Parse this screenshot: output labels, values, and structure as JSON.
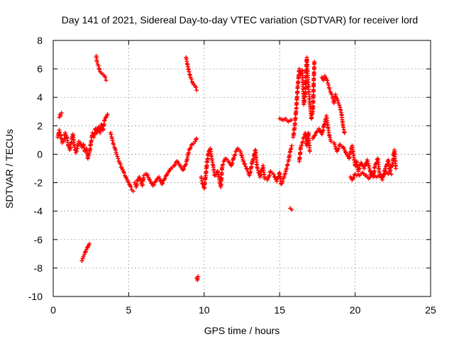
{
  "chart_data": {
    "type": "scatter",
    "title": "Day 141 of 2021, Sidereal Day-to-day VTEC variation (SDTVAR) for receiver lord",
    "xlabel": "GPS time / hours",
    "ylabel": "SDTVAR / TECUs",
    "xlim": [
      0,
      25
    ],
    "ylim": [
      -10,
      8
    ],
    "xticks": [
      0,
      5,
      10,
      15,
      20,
      25
    ],
    "yticks": [
      -10,
      -8,
      -6,
      -4,
      -2,
      0,
      2,
      4,
      6,
      8
    ],
    "grid": true,
    "marker": "+",
    "color": "#ff0000",
    "series": [
      {
        "name": "SDTVAR",
        "segments": [
          [
            [
              0.4,
              2.6
            ],
            [
              0.45,
              2.8
            ],
            [
              0.5,
              2.7
            ],
            [
              0.55,
              2.9
            ]
          ],
          [
            [
              0.3,
              1.2
            ],
            [
              0.4,
              1.7
            ],
            [
              0.5,
              1.3
            ],
            [
              0.6,
              0.8
            ],
            [
              0.7,
              0.9
            ],
            [
              0.8,
              1.5
            ],
            [
              0.9,
              1.2
            ],
            [
              1.0,
              0.6
            ],
            [
              1.1,
              0.3
            ],
            [
              1.2,
              0.8
            ],
            [
              1.3,
              1.4
            ],
            [
              1.4,
              0.6
            ],
            [
              1.5,
              0.1
            ],
            [
              1.6,
              0.4
            ],
            [
              1.7,
              0.9
            ],
            [
              1.8,
              0.8
            ],
            [
              1.9,
              0.5
            ],
            [
              2.0,
              0.7
            ],
            [
              2.1,
              0.2
            ],
            [
              2.2,
              0.4
            ],
            [
              2.3,
              -0.3
            ],
            [
              2.4,
              0.1
            ],
            [
              2.5,
              0.8
            ],
            [
              2.6,
              1.5
            ],
            [
              2.7,
              1.2
            ],
            [
              2.8,
              1.8
            ],
            [
              2.9,
              1.5
            ],
            [
              3.0,
              1.9
            ],
            [
              3.1,
              1.5
            ],
            [
              3.2,
              2.1
            ],
            [
              3.3,
              1.7
            ],
            [
              3.4,
              2.4
            ],
            [
              3.5,
              2.6
            ],
            [
              3.6,
              2.8
            ]
          ],
          [
            [
              1.9,
              -7.5
            ],
            [
              2.0,
              -7.2
            ],
            [
              2.1,
              -6.9
            ],
            [
              2.2,
              -6.7
            ],
            [
              2.3,
              -6.5
            ],
            [
              2.4,
              -6.3
            ]
          ],
          [
            [
              2.85,
              6.9
            ],
            [
              2.9,
              6.5
            ],
            [
              3.0,
              6.2
            ],
            [
              3.1,
              5.8
            ],
            [
              3.2,
              5.7
            ],
            [
              3.3,
              5.6
            ],
            [
              3.4,
              5.5
            ],
            [
              3.5,
              5.2
            ]
          ],
          [
            [
              3.8,
              1.5
            ],
            [
              3.9,
              1.1
            ],
            [
              4.0,
              0.7
            ],
            [
              4.1,
              0.4
            ],
            [
              4.2,
              0.0
            ],
            [
              4.3,
              -0.3
            ],
            [
              4.4,
              -0.6
            ],
            [
              4.5,
              -0.9
            ],
            [
              4.6,
              -1.1
            ],
            [
              4.7,
              -1.3
            ],
            [
              4.8,
              -1.6
            ],
            [
              4.9,
              -1.8
            ],
            [
              5.0,
              -2.0
            ],
            [
              5.1,
              -2.2
            ],
            [
              5.2,
              -2.5
            ],
            [
              5.3,
              -2.6
            ]
          ],
          [
            [
              5.4,
              -2.0
            ],
            [
              5.5,
              -2.3
            ],
            [
              5.6,
              -1.8
            ],
            [
              5.7,
              -1.6
            ],
            [
              5.8,
              -1.9
            ],
            [
              5.9,
              -2.2
            ],
            [
              6.0,
              -1.5
            ],
            [
              6.2,
              -1.4
            ],
            [
              6.4,
              -1.8
            ],
            [
              6.6,
              -2.2
            ],
            [
              6.8,
              -1.9
            ],
            [
              7.0,
              -1.6
            ],
            [
              7.2,
              -2.1
            ],
            [
              7.4,
              -1.7
            ],
            [
              7.6,
              -1.3
            ],
            [
              7.8,
              -1.0
            ],
            [
              8.0,
              -0.8
            ],
            [
              8.2,
              -0.5
            ],
            [
              8.4,
              -0.8
            ],
            [
              8.6,
              -1.1
            ],
            [
              8.8,
              -0.7
            ],
            [
              8.9,
              -0.2
            ],
            [
              9.0,
              0.3
            ],
            [
              9.2,
              0.7
            ],
            [
              9.4,
              0.9
            ],
            [
              9.5,
              1.1
            ]
          ],
          [
            [
              8.8,
              6.8
            ],
            [
              8.9,
              6.3
            ],
            [
              9.0,
              5.8
            ],
            [
              9.1,
              5.4
            ],
            [
              9.2,
              5.1
            ],
            [
              9.3,
              4.9
            ],
            [
              9.4,
              4.8
            ],
            [
              9.5,
              4.5
            ]
          ],
          [
            [
              9.5,
              -8.7
            ],
            [
              9.55,
              -8.85
            ],
            [
              9.6,
              -8.6
            ]
          ],
          [
            [
              9.8,
              -1.6
            ],
            [
              9.9,
              -2.1
            ],
            [
              10.0,
              -2.4
            ],
            [
              10.1,
              -1.5
            ],
            [
              10.2,
              -0.5
            ],
            [
              10.3,
              0.2
            ],
            [
              10.4,
              0.4
            ],
            [
              10.5,
              -0.3
            ],
            [
              10.6,
              -0.8
            ],
            [
              10.7,
              -1.5
            ],
            [
              10.9,
              -1.2
            ],
            [
              11.1,
              -2.3
            ],
            [
              11.2,
              -0.8
            ],
            [
              11.4,
              -0.3
            ],
            [
              11.6,
              -0.5
            ],
            [
              11.8,
              -0.8
            ],
            [
              12.0,
              -0.1
            ],
            [
              12.2,
              0.4
            ],
            [
              12.4,
              0.2
            ],
            [
              12.6,
              -0.5
            ],
            [
              12.8,
              -1.0
            ],
            [
              13.0,
              -1.5
            ],
            [
              13.2,
              -0.5
            ],
            [
              13.4,
              0.3
            ],
            [
              13.5,
              -0.9
            ],
            [
              13.7,
              -1.6
            ],
            [
              13.9,
              -0.8
            ],
            [
              14.0,
              -1.7
            ],
            [
              14.2,
              -1.8
            ],
            [
              14.4,
              -1.2
            ],
            [
              14.6,
              -1.4
            ],
            [
              14.8,
              -1.9
            ],
            [
              15.0,
              -1.3
            ],
            [
              15.1,
              -2.1
            ],
            [
              15.2,
              -1.9
            ],
            [
              15.3,
              -1.6
            ],
            [
              15.4,
              -1.2
            ],
            [
              15.5,
              -0.8
            ],
            [
              15.6,
              -0.4
            ],
            [
              15.7,
              0.2
            ],
            [
              15.8,
              0.6
            ]
          ],
          [
            [
              15.0,
              2.5
            ],
            [
              15.2,
              2.4
            ],
            [
              15.4,
              2.5
            ],
            [
              15.6,
              2.3
            ],
            [
              15.8,
              2.4
            ]
          ],
          [
            [
              15.7,
              -3.8
            ],
            [
              15.8,
              -3.9
            ]
          ],
          [
            [
              15.9,
              1.2
            ],
            [
              16.0,
              2.0
            ],
            [
              16.1,
              3.2
            ],
            [
              16.2,
              4.8
            ],
            [
              16.3,
              6.0
            ],
            [
              16.4,
              5.6
            ],
            [
              16.5,
              5.9
            ],
            [
              16.6,
              3.5
            ],
            [
              16.7,
              4.2
            ],
            [
              16.8,
              6.8
            ],
            [
              16.9,
              4.8
            ],
            [
              17.0,
              3.6
            ],
            [
              17.1,
              2.5
            ],
            [
              17.2,
              3.0
            ],
            [
              17.3,
              6.5
            ]
          ],
          [
            [
              16.3,
              -0.5
            ],
            [
              16.4,
              0.5
            ],
            [
              16.5,
              0.8
            ],
            [
              16.6,
              1.2
            ],
            [
              16.7,
              1.5
            ],
            [
              16.8,
              0.6
            ],
            [
              16.9,
              1.5
            ],
            [
              17.0,
              0.2
            ]
          ],
          [
            [
              17.2,
              1.1
            ],
            [
              17.4,
              1.5
            ],
            [
              17.6,
              1.8
            ],
            [
              17.8,
              1.4
            ],
            [
              18.0,
              2.3
            ],
            [
              18.1,
              2.7
            ],
            [
              18.2,
              1.9
            ],
            [
              18.3,
              1.3
            ],
            [
              18.4,
              0.9
            ]
          ],
          [
            [
              17.8,
              5.4
            ],
            [
              17.9,
              5.2
            ],
            [
              18.0,
              5.5
            ],
            [
              18.1,
              5.3
            ],
            [
              18.2,
              5.0
            ],
            [
              18.3,
              4.6
            ],
            [
              18.4,
              4.3
            ],
            [
              18.5,
              4.0
            ],
            [
              18.6,
              3.6
            ],
            [
              18.7,
              4.2
            ],
            [
              18.8,
              3.9
            ],
            [
              18.9,
              3.6
            ],
            [
              19.0,
              3.3
            ],
            [
              19.1,
              2.8
            ],
            [
              19.2,
              2.0
            ],
            [
              19.3,
              1.5
            ]
          ],
          [
            [
              18.6,
              0.8
            ],
            [
              18.8,
              0.2
            ],
            [
              19.0,
              0.7
            ],
            [
              19.2,
              0.5
            ],
            [
              19.4,
              0.1
            ],
            [
              19.6,
              -0.3
            ],
            [
              19.7,
              0.2
            ],
            [
              19.8,
              0.6
            ],
            [
              19.9,
              -0.1
            ],
            [
              20.0,
              -0.8
            ],
            [
              20.1,
              -0.5
            ],
            [
              20.2,
              -1.2
            ],
            [
              20.4,
              -0.6
            ],
            [
              20.6,
              -1.0
            ],
            [
              20.8,
              -0.4
            ],
            [
              21.0,
              -1.2
            ],
            [
              21.2,
              -1.6
            ],
            [
              21.3,
              -0.9
            ],
            [
              21.5,
              -0.3
            ],
            [
              21.6,
              -1.3
            ],
            [
              21.8,
              -1.8
            ],
            [
              22.0,
              -1.0
            ],
            [
              22.2,
              -0.4
            ],
            [
              22.3,
              -1.2
            ],
            [
              22.5,
              -0.6
            ],
            [
              22.6,
              0.3
            ],
            [
              22.7,
              -1.0
            ]
          ],
          [
            [
              19.7,
              -1.6
            ],
            [
              19.8,
              -1.8
            ],
            [
              20.0,
              -1.4
            ],
            [
              20.3,
              -1.5
            ],
            [
              20.5,
              -1.3
            ],
            [
              20.9,
              -1.7
            ],
            [
              21.1,
              -1.4
            ],
            [
              21.4,
              -1.6
            ],
            [
              21.7,
              -1.5
            ],
            [
              22.1,
              -1.3
            ],
            [
              22.4,
              -1.4
            ]
          ]
        ]
      }
    ]
  }
}
